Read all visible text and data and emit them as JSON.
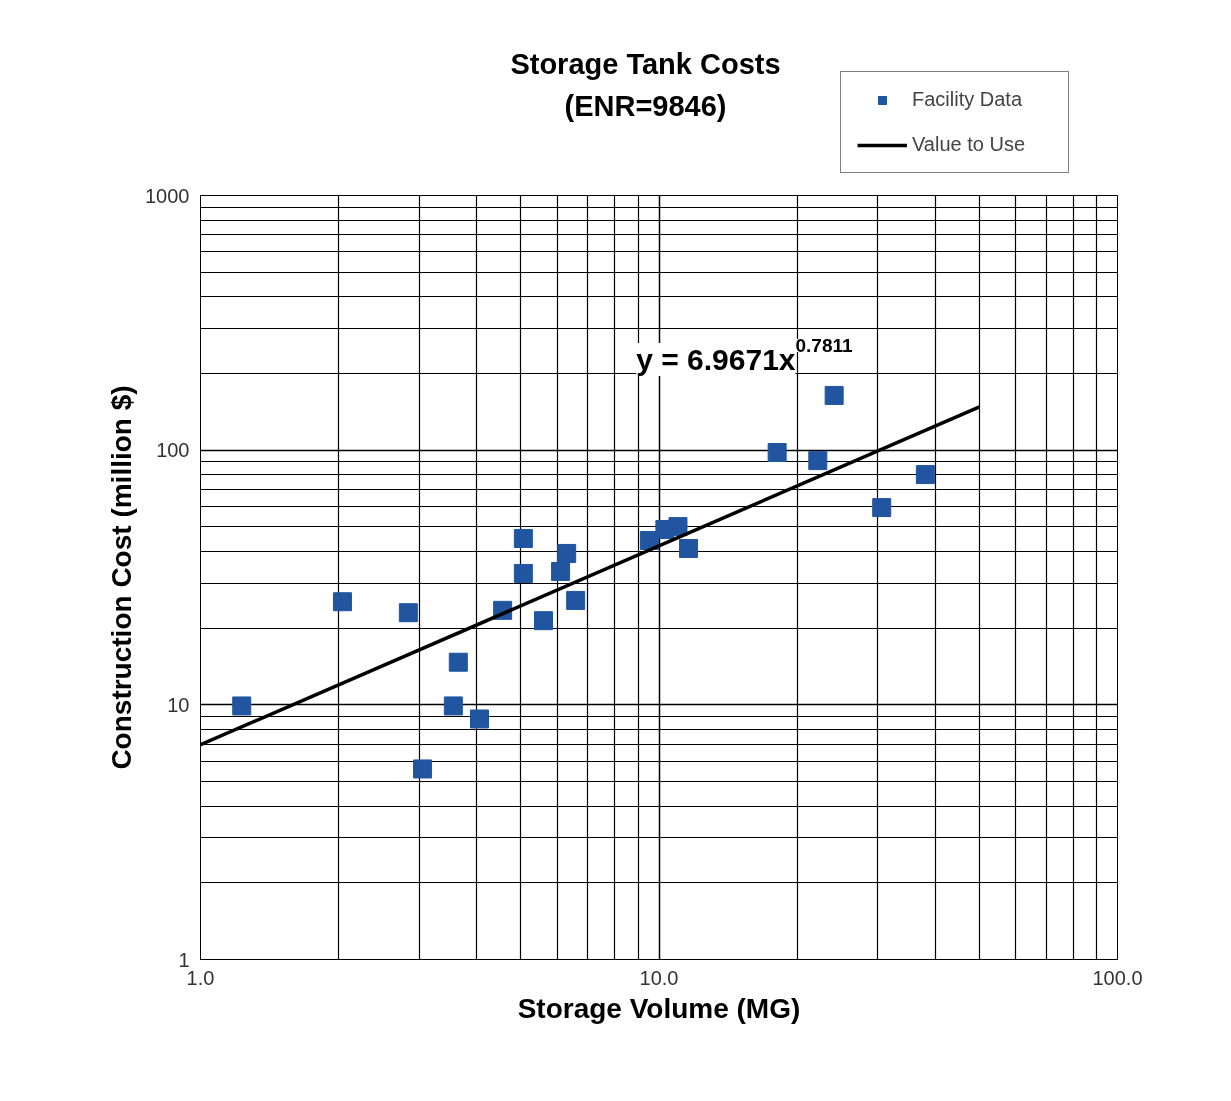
{
  "chart_data": {
    "type": "scatter",
    "title": "Storage Tank Costs",
    "subtitle": "(ENR=9846)",
    "xlabel": "Storage Volume (MG)",
    "ylabel": "Construction Cost (million $)",
    "log": "xy",
    "grid": true,
    "legend": "top right",
    "xlim": [
      1,
      100
    ],
    "ylim": [
      1,
      1000
    ],
    "xticks": [
      {
        "value": 1,
        "label": "1.0"
      },
      {
        "value": 10,
        "label": "10.0"
      },
      {
        "value": 100,
        "label": "100.0"
      }
    ],
    "yticks": [
      1,
      10,
      100,
      1000
    ],
    "annotations": [
      "y = 6.9671x$^{0.7811}$"
    ],
    "series": [
      {
        "name": "Facility Data",
        "marker": "square",
        "color": "#2155a0",
        "x": [
          1.23,
          2.04,
          2.84,
          3.05,
          3.56,
          3.65,
          4.06,
          4.56,
          5.06,
          5.06,
          5.6,
          6.1,
          6.29,
          6.58,
          9.53,
          10.3,
          11.0,
          11.6,
          18.1,
          22.2,
          24.1,
          30.6,
          38.1
        ],
        "values": [
          9.9,
          25.4,
          23.0,
          5.6,
          9.9,
          14.7,
          8.8,
          23.5,
          45.0,
          32.8,
          21.4,
          33.4,
          39.3,
          25.7,
          44.2,
          48.8,
          50.1,
          41.1,
          97.9,
          91.0,
          164,
          59.5,
          80.2
        ]
      },
      {
        "name": "Value to Use",
        "type": "line",
        "color": "#000000",
        "x": [
          1,
          50
        ],
        "values": [
          6.97,
          148
        ]
      }
    ]
  }
}
